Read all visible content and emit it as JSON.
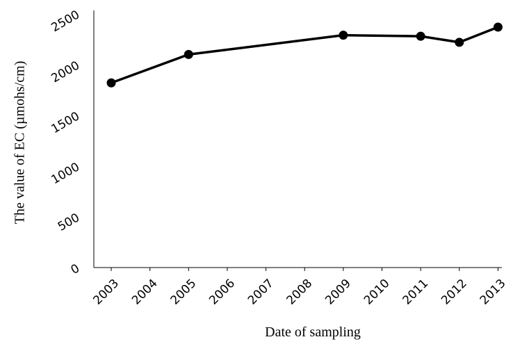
{
  "chart_data": {
    "type": "line",
    "x_label": "Date of sampling",
    "y_label": "The value of EC (µmohs/cm)",
    "x": [
      2003,
      2005,
      2009,
      2011,
      2012,
      2013
    ],
    "series": [
      {
        "name": "EC",
        "color": "#000000",
        "values": [
          1820,
          2100,
          2290,
          2280,
          2220,
          2370
        ]
      }
    ],
    "xlim": [
      2002.55,
      2013.1
    ],
    "xticks": [
      2003,
      2004,
      2005,
      2006,
      2007,
      2008,
      2009,
      2010,
      2011,
      2012,
      2013
    ],
    "ylim": [
      0,
      2500
    ],
    "yticks": [
      0,
      500,
      1000,
      1500,
      2000,
      2500
    ],
    "grid": false
  }
}
